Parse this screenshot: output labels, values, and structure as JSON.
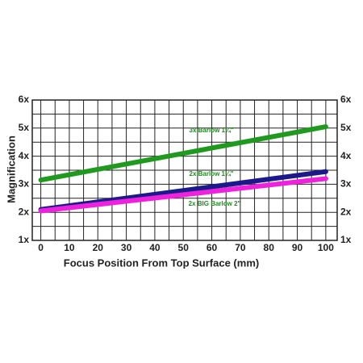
{
  "chart_data": {
    "type": "line",
    "x_label": "Focus Position From Top Surface (mm)",
    "y_label": "Magnification",
    "x": [
      0,
      100
    ],
    "series": [
      {
        "name": "3x Barlow 1¼\"",
        "color": "#1f9a1f",
        "values": [
          3.15,
          5.05
        ]
      },
      {
        "name": "2x Barlow 1¼\"",
        "color": "#1c1a8a",
        "values": [
          2.1,
          3.45
        ]
      },
      {
        "name": "2x BIG Barlow 2\"",
        "color": "#ee22dd",
        "values": [
          2.05,
          3.2
        ]
      }
    ],
    "label_color": "#1f8a1f",
    "xlim": [
      -3,
      104
    ],
    "xticks": [
      0,
      10,
      20,
      30,
      40,
      50,
      60,
      70,
      80,
      90,
      100
    ],
    "x_minor_ticks": [
      5,
      15,
      25,
      35,
      45,
      55,
      65,
      75,
      85,
      95
    ],
    "ylim": [
      1,
      6
    ],
    "yticks": [
      {
        "value": 1,
        "label": "1x"
      },
      {
        "value": 2,
        "label": "2x"
      },
      {
        "value": 3,
        "label": "3x"
      },
      {
        "value": 4,
        "label": "4x"
      },
      {
        "value": 5,
        "label": "5x"
      },
      {
        "value": 6,
        "label": "6x"
      }
    ],
    "y_minor_ticks": [
      1.5,
      2.5,
      3.5,
      4.5,
      5.5
    ],
    "grid": true
  }
}
